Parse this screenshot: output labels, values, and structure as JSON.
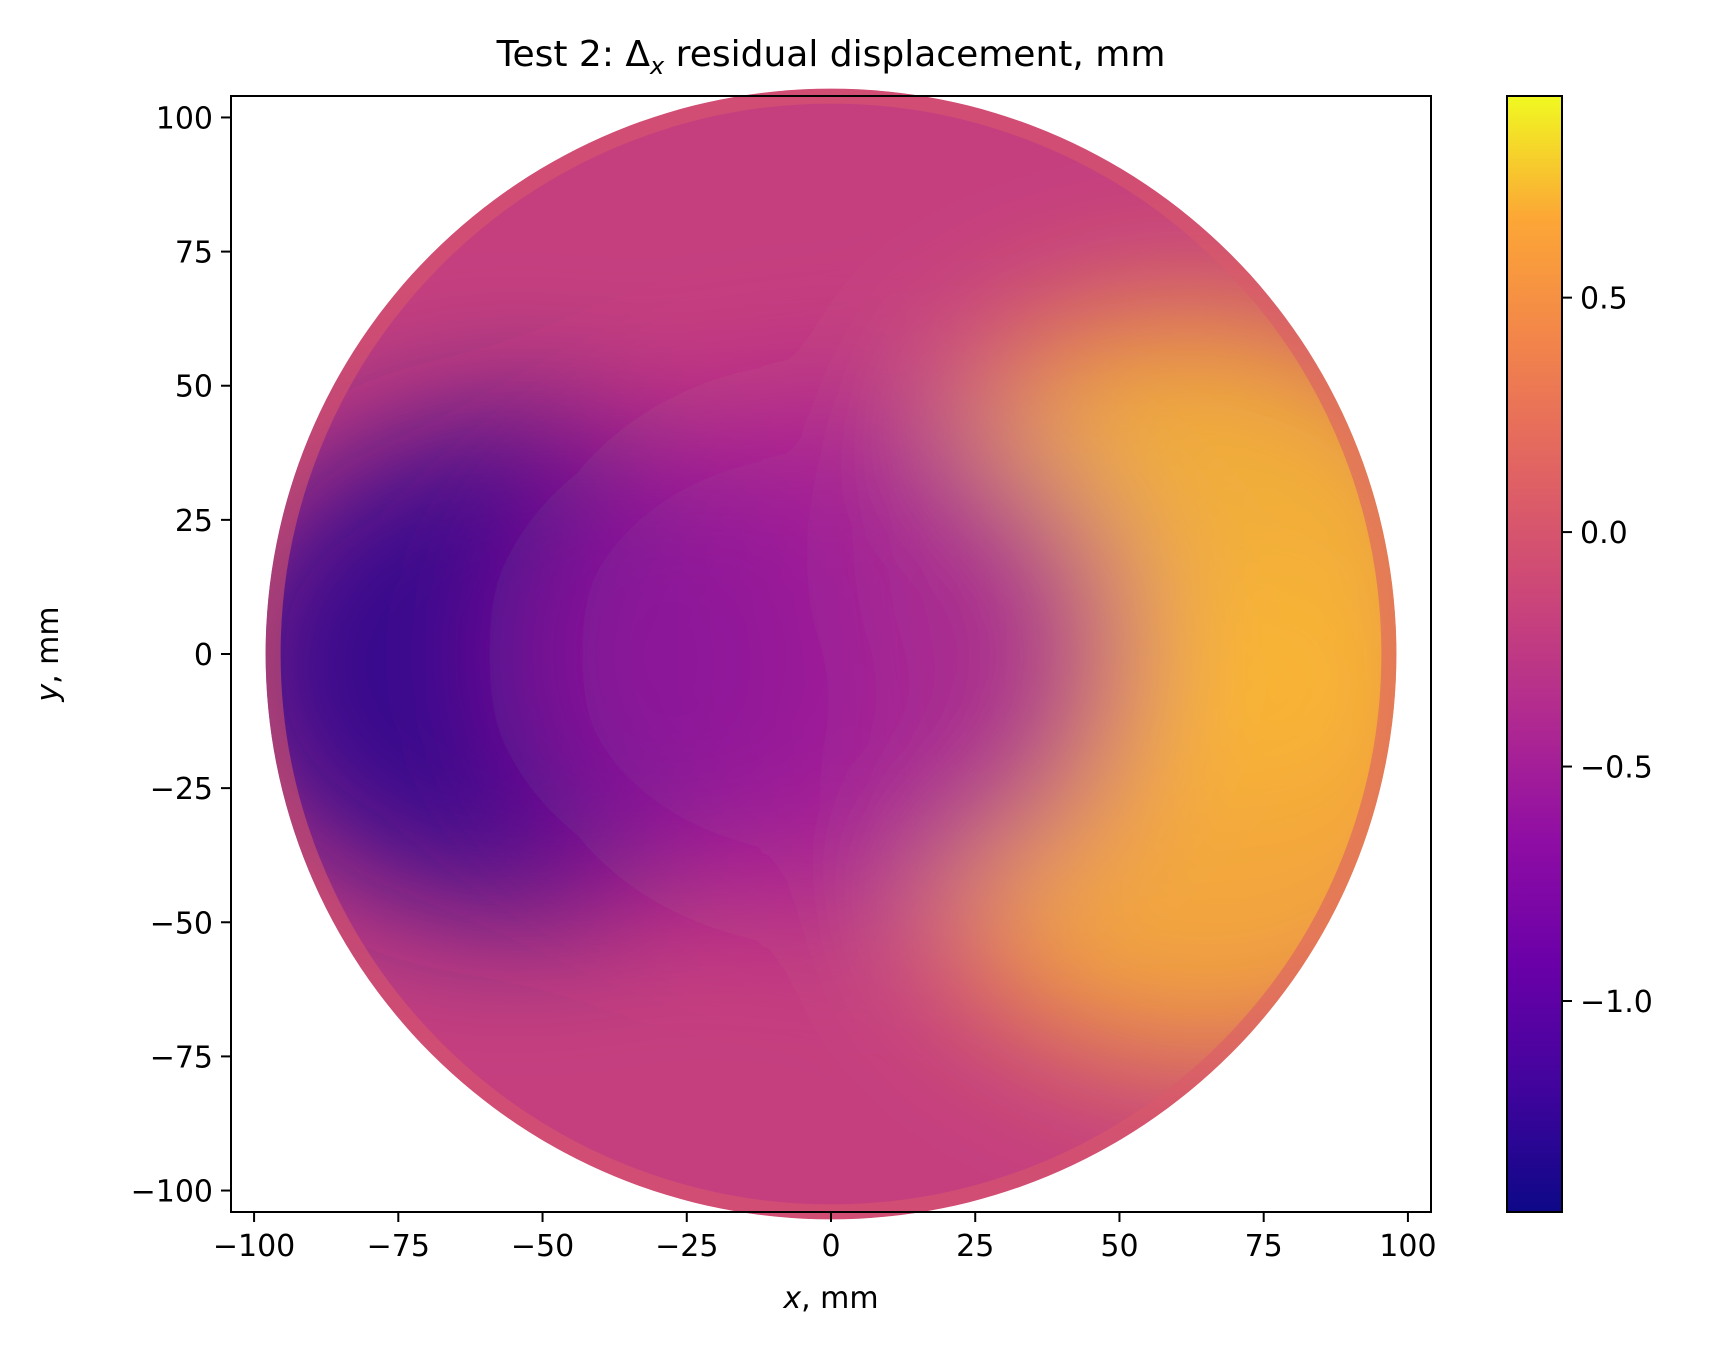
{
  "chart_data": {
    "type": "heatmap",
    "title": "Test 2: Δx residual displacement, mm",
    "title_parts": {
      "prefix": "Test 2: Δ",
      "subscript": "x",
      "suffix": " residual displacement, mm"
    },
    "xlabel": "x, mm",
    "xlabel_parts": {
      "var": "x",
      "rest": ", mm"
    },
    "ylabel": "y, mm",
    "ylabel_parts": {
      "var": "y",
      "rest": ", mm"
    },
    "xlim": [
      -104,
      104
    ],
    "ylim": [
      -104,
      104
    ],
    "x_ticks": [
      -100,
      -75,
      -50,
      -25,
      0,
      25,
      50,
      75,
      100
    ],
    "x_tick_labels": [
      "−100",
      "−75",
      "−50",
      "−25",
      "0",
      "25",
      "50",
      "75",
      "100"
    ],
    "y_ticks": [
      -100,
      -75,
      -50,
      -25,
      0,
      25,
      50,
      75,
      100
    ],
    "y_tick_labels": [
      "−100",
      "−75",
      "−50",
      "−25",
      "0",
      "25",
      "50",
      "75",
      "100"
    ],
    "colormap": "plasma",
    "colorbar": {
      "vmin": -1.45,
      "vmax": 0.93,
      "ticks": [
        -1.0,
        -0.5,
        0.0,
        0.5
      ],
      "tick_labels": [
        "−1.0",
        "−0.5",
        "0.0",
        "0.5"
      ]
    },
    "domain": {
      "shape": "circle",
      "center": [
        0,
        0
      ],
      "radius": 98
    },
    "field_features": [
      {
        "x": -55,
        "y": -2,
        "value": -1.35
      },
      {
        "x": 62,
        "y": 18,
        "value": 0.75
      },
      {
        "x": 65,
        "y": -30,
        "value": 0.72
      },
      {
        "x": 0,
        "y": 0,
        "value": -0.55
      }
    ],
    "grid": false
  }
}
